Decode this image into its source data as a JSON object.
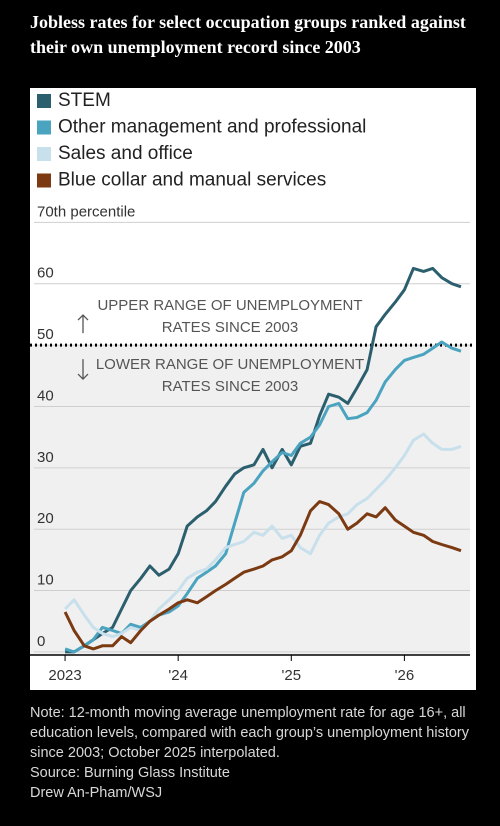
{
  "chart_data": {
    "type": "line",
    "title": "Jobless rates for select occupation groups ranked against their own unemployment record since 2003",
    "x": [
      2023,
      2023.08,
      2023.17,
      2023.25,
      2023.33,
      2023.42,
      2023.5,
      2023.58,
      2023.67,
      2023.75,
      2023.83,
      2023.92,
      2024,
      2024.08,
      2024.17,
      2024.25,
      2024.33,
      2024.42,
      2024.5,
      2024.58,
      2024.67,
      2024.75,
      2024.83,
      2024.92,
      2025,
      2025.08,
      2025.17,
      2025.25,
      2025.33,
      2025.42,
      2025.5,
      2025.58,
      2025.67,
      2025.75,
      2025.83,
      2025.92,
      2026,
      2026.08,
      2026.17,
      2026.25,
      2026.33,
      2026.42,
      2026.5
    ],
    "series": [
      {
        "name": "STEM",
        "color": "#2c5f6e",
        "values": [
          0,
          0,
          1,
          2,
          3,
          4,
          7,
          10,
          12,
          14,
          12.5,
          13.5,
          16,
          20.5,
          22,
          23,
          24.5,
          27,
          29,
          30,
          30.5,
          33,
          30,
          33,
          30.5,
          33.5,
          34,
          38.5,
          42,
          41.5,
          40.5,
          43,
          46,
          53,
          55,
          57,
          59,
          62.5,
          62,
          62.5,
          61,
          60,
          59.5
        ]
      },
      {
        "name": "Other management and professional",
        "color": "#4aa3bf",
        "values": [
          0.5,
          0,
          1,
          2,
          4,
          3.5,
          3,
          4.5,
          4,
          5,
          6,
          6.5,
          7.5,
          9.5,
          12,
          13,
          14,
          16,
          21,
          26,
          27.5,
          29.5,
          31,
          32.5,
          32,
          34,
          35,
          37,
          40,
          40.5,
          38,
          38.2,
          39,
          41,
          44,
          46,
          47.5,
          48,
          48.5,
          49.5,
          50.5,
          49.5,
          49
        ]
      },
      {
        "name": "Sales and office",
        "color": "#c8e0ec",
        "values": [
          7,
          8.5,
          6,
          4,
          3,
          2.5,
          3,
          4,
          3.5,
          5,
          7,
          8.5,
          10,
          12,
          13,
          13.5,
          15,
          17,
          17.5,
          18,
          19.5,
          19,
          20.5,
          18.5,
          19,
          17,
          16,
          19,
          21,
          22,
          22.5,
          24,
          25,
          26.5,
          28,
          30,
          32,
          34.5,
          35.5,
          34,
          33,
          33,
          33.5
        ]
      },
      {
        "name": "Blue collar and manual services",
        "color": "#7b3a12",
        "values": [
          6.5,
          3.5,
          1,
          0.5,
          1,
          1,
          2.5,
          1.5,
          3.5,
          5,
          6,
          7,
          8,
          8.5,
          8,
          9,
          10,
          11,
          12,
          13,
          13.5,
          14,
          15,
          15.5,
          16.5,
          19,
          23,
          24.5,
          24,
          22.5,
          20,
          21,
          22.5,
          22,
          23.5,
          21.5,
          20.5,
          19.5,
          19,
          18,
          17.5,
          17,
          16.5
        ]
      }
    ],
    "xlim": [
      2022.69,
      2026.58
    ],
    "xticks": [
      {
        "value": 2023,
        "label": "2023"
      },
      {
        "value": 2024,
        "label": "'24"
      },
      {
        "value": 2025,
        "label": "'25"
      },
      {
        "value": 2026,
        "label": "'26"
      }
    ],
    "ylim": [
      -0.5,
      72.5
    ],
    "yticks": [
      0,
      10,
      20,
      30,
      40,
      50,
      60,
      {
        "value": 70,
        "label": "70th percentile"
      }
    ],
    "grid": true,
    "threshold": 50,
    "upper_annotation": [
      "UPPER RANGE OF UNEMPLOYMENT",
      "RATES SINCE 2003"
    ],
    "lower_annotation": [
      "LOWER RANGE OF UNEMPLOYMENT",
      "RATES SINCE 2003"
    ],
    "note": "Note: 12-month moving average unemployment rate for age 16+, all education levels, compared with each group’s unemployment history since 2003; October 2025 interpolated.",
    "source": "Source: Burning Glass Institute",
    "credit": "Drew An-Pham/WSJ"
  }
}
